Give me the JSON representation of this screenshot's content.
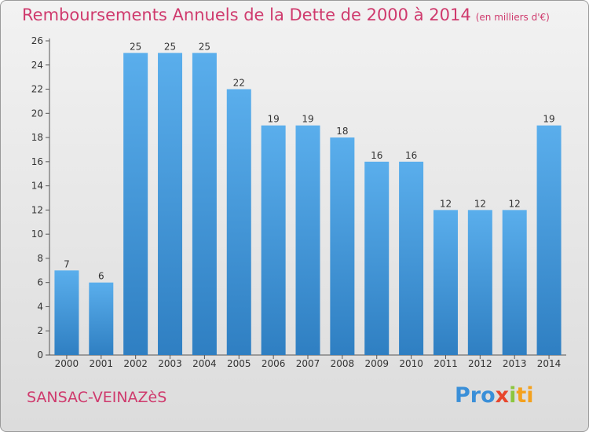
{
  "header": {
    "title": "Remboursements Annuels de la Dette de 2000 à 2014",
    "subtitle": "(en milliers d'€)"
  },
  "footer": {
    "town": "SANSAC-VEINAZèS",
    "logo": [
      "Pro",
      "x",
      "i",
      "ti"
    ]
  },
  "colors": {
    "bar_light": "#5aaeec",
    "bar_dark": "#2f7fc2",
    "title": "#cf3a6d"
  },
  "chart_data": {
    "type": "bar",
    "title": "Remboursements Annuels de la Dette de 2000 à 2014",
    "subtitle": "(en milliers d'€)",
    "categories": [
      "2000",
      "2001",
      "2002",
      "2003",
      "2004",
      "2005",
      "2006",
      "2007",
      "2008",
      "2009",
      "2010",
      "2011",
      "2012",
      "2013",
      "2014"
    ],
    "values": [
      7,
      6,
      25,
      25,
      25,
      22,
      19,
      19,
      18,
      16,
      16,
      12,
      12,
      12,
      19
    ],
    "ylim": [
      0,
      26
    ],
    "yticks": [
      0,
      2,
      4,
      6,
      8,
      10,
      12,
      14,
      16,
      18,
      20,
      22,
      24,
      26
    ],
    "grid": false,
    "data_labels": true
  }
}
